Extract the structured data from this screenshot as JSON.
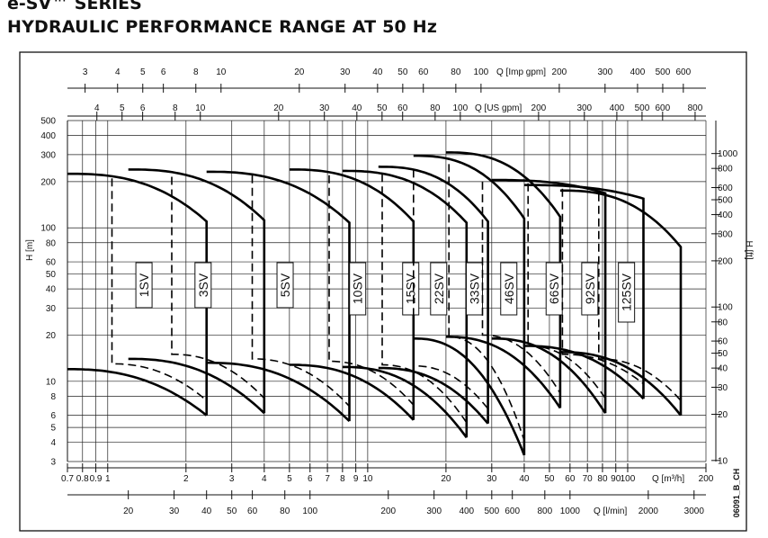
{
  "header": {
    "title": "e-SV™ SERIES",
    "subtitle": "HYDRAULIC PERFORMANCE RANGE AT 50 Hz"
  },
  "chart_data": {
    "type": "line",
    "title": "HYDRAULIC PERFORMANCE RANGE AT 50 Hz",
    "x_scale": "log",
    "y_scale": "log",
    "xlim": [
      0.7,
      200
    ],
    "ylim": [
      3,
      500
    ],
    "x_axes": {
      "m3h": {
        "label": "Q [m³/h]",
        "ticks": [
          0.7,
          0.8,
          0.9,
          1,
          2,
          3,
          4,
          5,
          6,
          7,
          8,
          9,
          10,
          20,
          30,
          40,
          50,
          60,
          70,
          80,
          90,
          100,
          200
        ],
        "tick_labels": [
          "0.7",
          "0.8",
          "0.9",
          "1",
          "2",
          "3",
          "4",
          "5",
          "6",
          "7",
          "8",
          "9",
          "10",
          "20",
          "30",
          "40",
          "50",
          "60",
          "70",
          "80",
          "90",
          "100",
          "200"
        ]
      },
      "lmin": {
        "label": "Q [l/min]",
        "ticks": [
          20,
          30,
          40,
          50,
          60,
          80,
          100,
          200,
          300,
          400,
          500,
          600,
          800,
          1000,
          2000,
          3000
        ],
        "tick_labels": [
          "20",
          "30",
          "40",
          "50",
          "60",
          "80",
          "100",
          "200",
          "300",
          "400",
          "500",
          "600",
          "800",
          "1000",
          "2000",
          "3000"
        ]
      },
      "usgpm": {
        "label": "Q [US gpm]",
        "ticks": [
          4,
          5,
          6,
          8,
          10,
          20,
          30,
          40,
          50,
          60,
          80,
          100,
          200,
          300,
          400,
          500,
          600,
          800
        ],
        "tick_labels": [
          "4",
          "5",
          "6",
          "8",
          "10",
          "20",
          "30",
          "40",
          "50",
          "60",
          "80",
          "100",
          "200",
          "300",
          "400",
          "500",
          "600",
          "800"
        ]
      },
      "impgpm": {
        "label": "Q [Imp gpm]",
        "ticks": [
          3,
          4,
          5,
          6,
          8,
          10,
          20,
          30,
          40,
          50,
          60,
          80,
          100,
          200,
          300,
          400,
          500,
          600
        ],
        "tick_labels": [
          "3",
          "4",
          "5",
          "6",
          "8",
          "10",
          "20",
          "30",
          "40",
          "50",
          "60",
          "80",
          "100",
          "200",
          "300",
          "400",
          "500",
          "600"
        ]
      }
    },
    "y_axes": {
      "m": {
        "label": "H [m]",
        "ticks": [
          3,
          4,
          5,
          6,
          8,
          10,
          20,
          30,
          40,
          50,
          60,
          80,
          100,
          200,
          300,
          400,
          500
        ],
        "tick_labels": [
          "3",
          "4",
          "5",
          "6",
          "8",
          "10",
          "20",
          "30",
          "40",
          "50",
          "60",
          "80",
          "100",
          "200",
          "300",
          "400",
          "500"
        ]
      },
      "ft": {
        "label": "H [ft]",
        "ticks": [
          10,
          20,
          30,
          40,
          50,
          60,
          80,
          100,
          200,
          300,
          400,
          500,
          600,
          800,
          1000
        ],
        "tick_labels": [
          "10",
          "20",
          "30",
          "40",
          "50",
          "60",
          "80",
          "100",
          "200",
          "300",
          "400",
          "500",
          "600",
          "800",
          "1000"
        ]
      }
    },
    "series": [
      {
        "name": "1SV",
        "q_min": 0.7,
        "q_max": 2.4,
        "h_top_min": 225,
        "h_top_max": 110,
        "h_bot_min": 12,
        "h_bot_max": 6,
        "h_dash_top": 210,
        "h_dash_bot": 13
      },
      {
        "name": "3SV",
        "q_min": 1.2,
        "q_max": 4,
        "h_top_min": 240,
        "h_top_max": 112,
        "h_bot_min": 14,
        "h_bot_max": 6.2,
        "h_dash_top": 215,
        "h_dash_bot": 15
      },
      {
        "name": "5SV",
        "q_min": 2.4,
        "q_max": 8.5,
        "h_top_min": 232,
        "h_top_max": 108,
        "h_bot_min": 13.2,
        "h_bot_max": 5.5,
        "h_dash_top": 220,
        "h_dash_bot": 14
      },
      {
        "name": "10SV",
        "q_min": 5,
        "q_max": 15,
        "h_top_min": 240,
        "h_top_max": 110,
        "h_bot_min": 12.8,
        "h_bot_max": 5.6,
        "h_dash_top": 220,
        "h_dash_bot": 13.5
      },
      {
        "name": "15SV",
        "q_min": 8,
        "q_max": 24,
        "h_top_min": 235,
        "h_top_max": 108,
        "h_bot_min": 12.4,
        "h_bot_max": 4.3,
        "h_dash_top": 225,
        "h_dash_bot": 12.8
      },
      {
        "name": "22SV",
        "q_min": 11,
        "q_max": 29,
        "h_top_min": 250,
        "h_top_max": 110,
        "h_bot_min": 12.2,
        "h_bot_max": 5.3,
        "h_dash_top": 240,
        "h_dash_bot": 12.6
      },
      {
        "name": "33SV",
        "q_min": 15,
        "q_max": 40,
        "h_top_min": 295,
        "h_top_max": 115,
        "h_bot_min": 19,
        "h_bot_max": 3.3,
        "h_dash_top": 260,
        "h_dash_bot": 19.5
      },
      {
        "name": "46SV",
        "q_min": 20,
        "q_max": 55,
        "h_top_min": 310,
        "h_top_max": 118,
        "h_bot_min": 19.5,
        "h_bot_max": 6.7,
        "h_dash_top": 200,
        "h_dash_bot": 20
      },
      {
        "name": "66SV",
        "q_min": 30,
        "q_max": 82,
        "h_top_min": 205,
        "h_top_max": 168,
        "h_bot_min": 19,
        "h_bot_max": 6.2,
        "h_dash_top": 195,
        "h_dash_bot": 17
      },
      {
        "name": "92SV",
        "q_min": 40,
        "q_max": 115,
        "h_top_min": 190,
        "h_top_max": 155,
        "h_bot_min": 17,
        "h_bot_max": 7.7,
        "h_dash_top": 180,
        "h_dash_bot": 15
      },
      {
        "name": "125SV",
        "q_min": 55,
        "q_max": 160,
        "h_top_min": 175,
        "h_top_max": 75,
        "h_bot_min": 15.5,
        "h_bot_max": 6,
        "h_dash_top": 168,
        "h_dash_bot": 14
      }
    ],
    "grid": true,
    "legend": "none",
    "annotation": "06091_B_CH"
  }
}
